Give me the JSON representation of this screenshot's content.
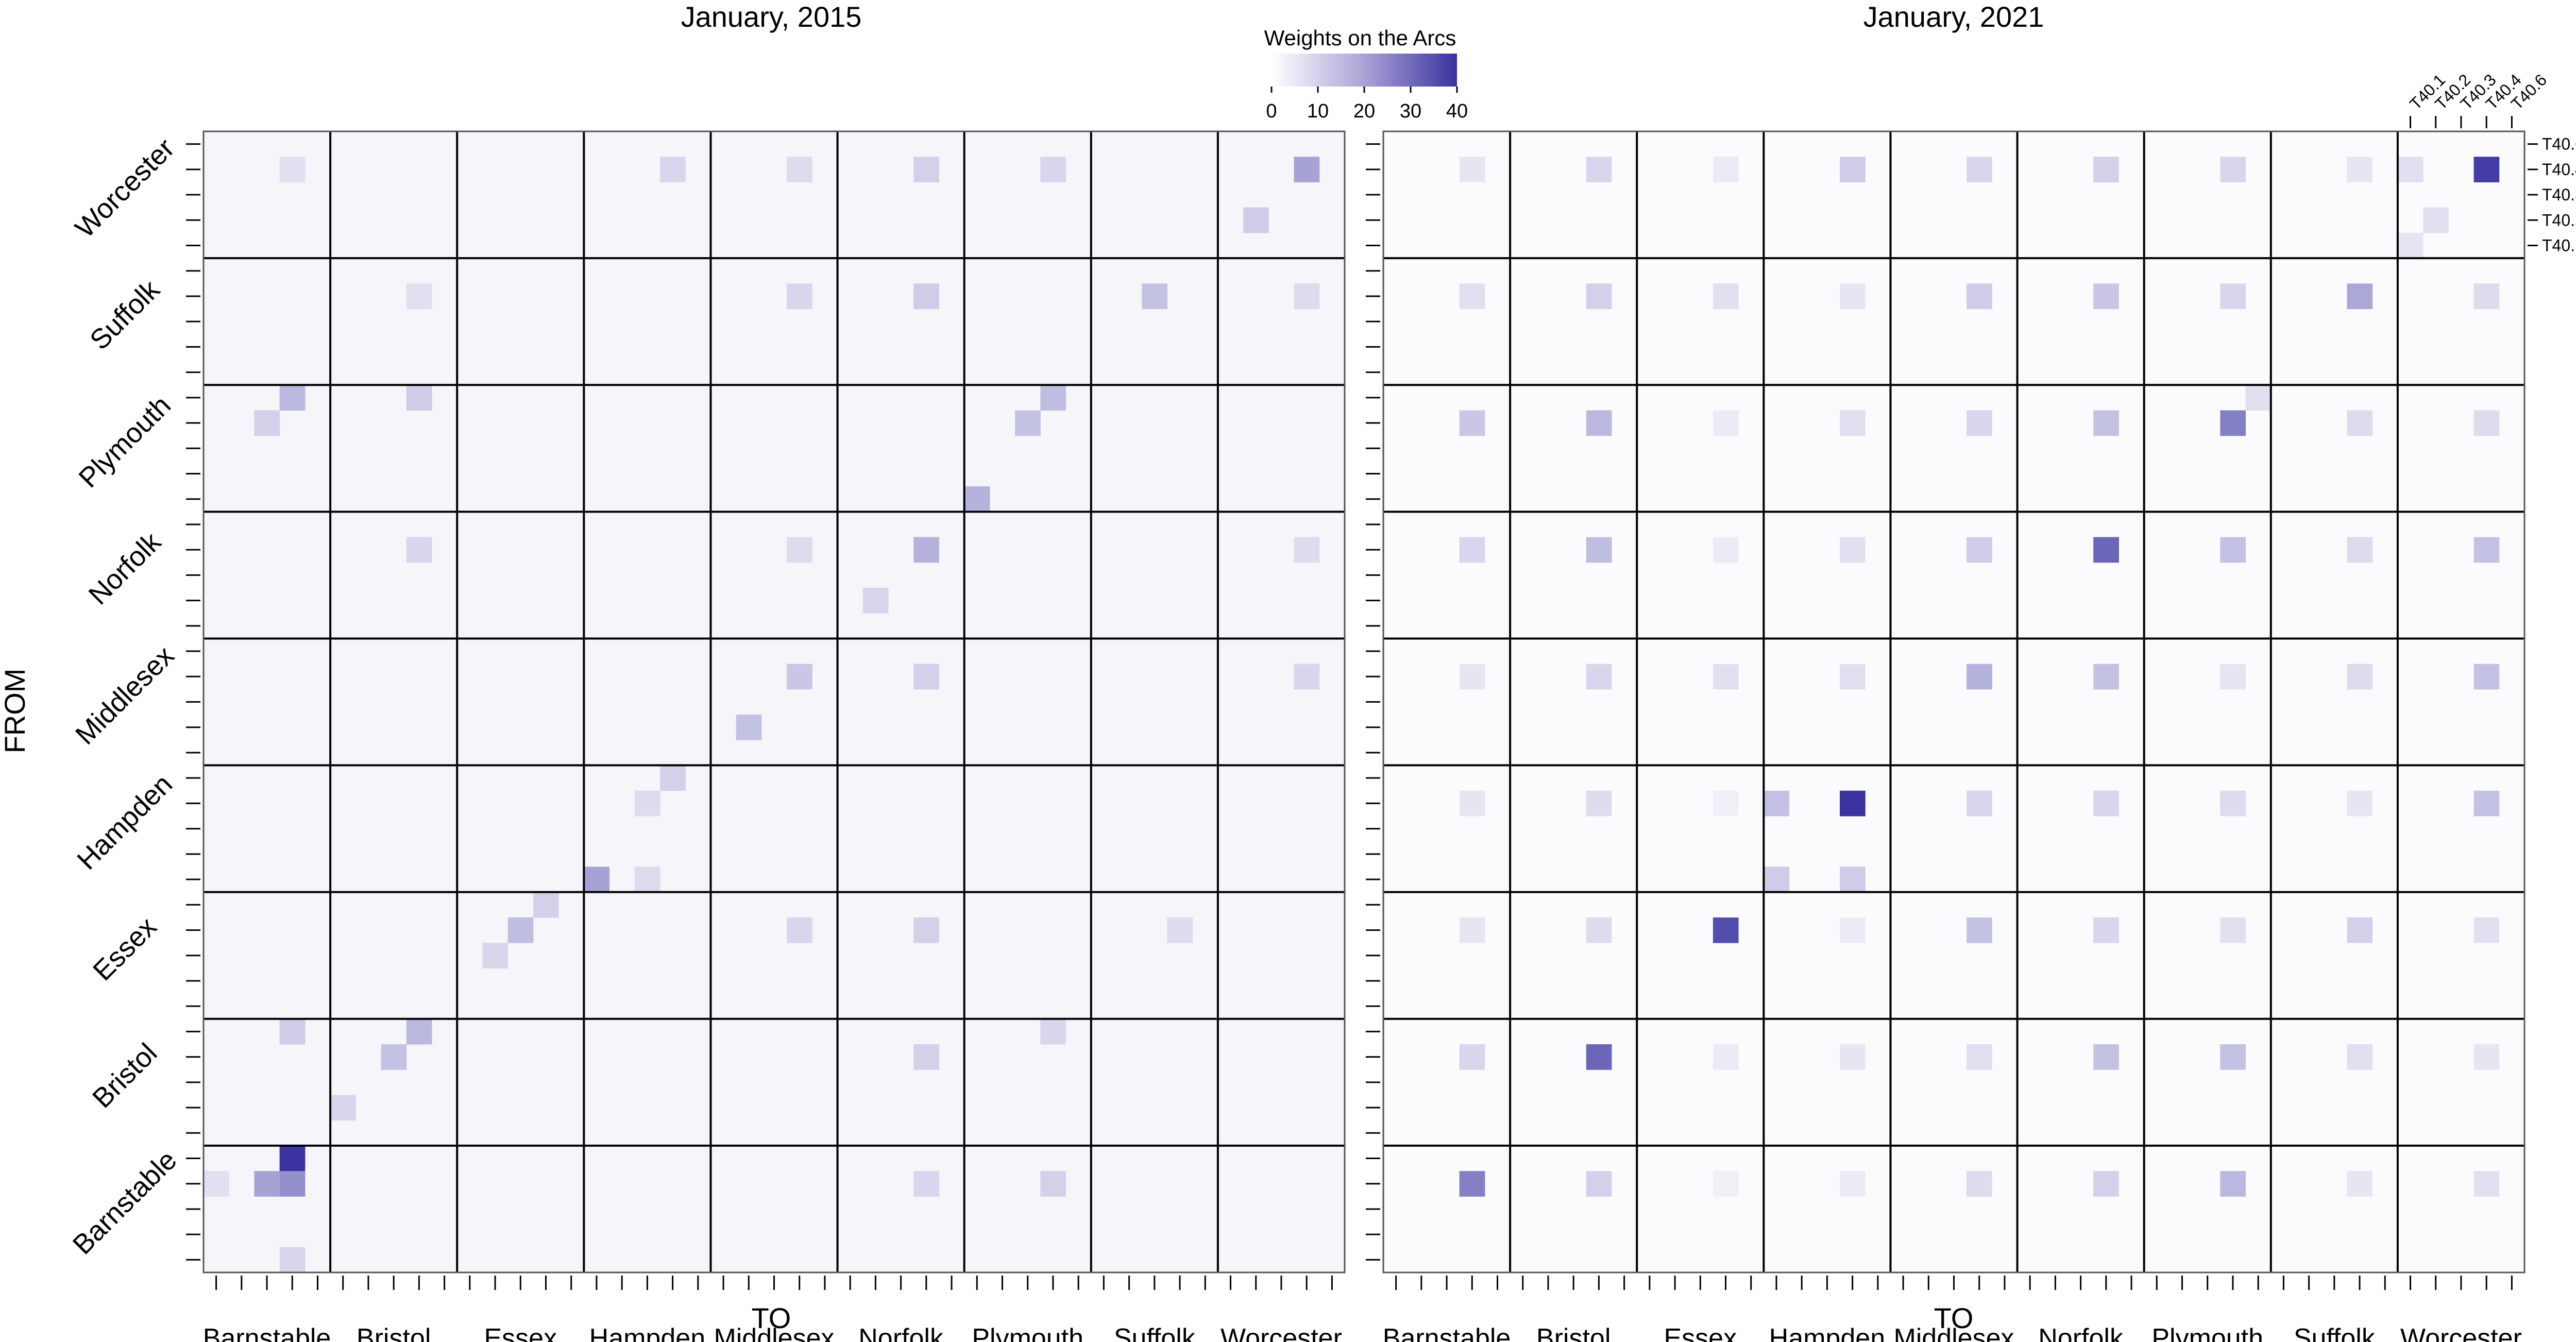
{
  "figure": {
    "left_title": "January, 2015",
    "right_title": "January, 2021",
    "x_axis_title": "TO",
    "y_axis_title": "FROM"
  },
  "legend": {
    "title": "Weights on the Arcs",
    "ticks": [
      "0",
      "10",
      "20",
      "30",
      "40"
    ],
    "range": [
      0,
      40
    ],
    "color_low": "#ffffff",
    "color_high": "#3a33a0"
  },
  "chart_data": [
    {
      "type": "heatmap",
      "title": "January, 2015",
      "xlabel": "TO",
      "ylabel": "FROM",
      "blocks": [
        "Barnstable",
        "Bristol",
        "Essex",
        "Hampden",
        "Middlesex",
        "Norfolk",
        "Plymouth",
        "Suffolk",
        "Worcester"
      ],
      "sub_levels": [
        "T40.1",
        "T40.2",
        "T40.3",
        "T40.4",
        "T40.6"
      ],
      "scale": [
        0,
        40
      ],
      "background": 2,
      "rows_top_to_bottom": [
        "Worcester",
        "Suffolk",
        "Plymouth",
        "Norfolk",
        "Middlesex",
        "Hampden",
        "Essex",
        "Bristol",
        "Barnstable"
      ],
      "cells": [
        {
          "from": "Worcester",
          "from_sub": "T40.4",
          "to": "Worcester",
          "to_sub": "T40.4",
          "value": 18
        },
        {
          "from": "Worcester",
          "from_sub": "T40.2",
          "to": "Worcester",
          "to_sub": "T40.2",
          "value": 10
        },
        {
          "from": "Worcester",
          "from_sub": "T40.4",
          "to": "Plymouth",
          "to_sub": "T40.4",
          "value": 8
        },
        {
          "from": "Worcester",
          "from_sub": "T40.4",
          "to": "Norfolk",
          "to_sub": "T40.4",
          "value": 9
        },
        {
          "from": "Worcester",
          "from_sub": "T40.4",
          "to": "Hampden",
          "to_sub": "T40.4",
          "value": 8
        },
        {
          "from": "Worcester",
          "from_sub": "T40.4",
          "to": "Barnstable",
          "to_sub": "T40.4",
          "value": 6
        },
        {
          "from": "Worcester",
          "from_sub": "T40.4",
          "to": "Middlesex",
          "to_sub": "T40.4",
          "value": 7
        },
        {
          "from": "Suffolk",
          "from_sub": "T40.4",
          "to": "Suffolk",
          "to_sub": "T40.3",
          "value": 12
        },
        {
          "from": "Suffolk",
          "from_sub": "T40.4",
          "to": "Norfolk",
          "to_sub": "T40.4",
          "value": 10
        },
        {
          "from": "Suffolk",
          "from_sub": "T40.4",
          "to": "Middlesex",
          "to_sub": "T40.4",
          "value": 8
        },
        {
          "from": "Suffolk",
          "from_sub": "T40.4",
          "to": "Worcester",
          "to_sub": "T40.4",
          "value": 7
        },
        {
          "from": "Suffolk",
          "from_sub": "T40.4",
          "to": "Bristol",
          "to_sub": "T40.4",
          "value": 6
        },
        {
          "from": "Plymouth",
          "from_sub": "T40.6",
          "to": "Barnstable",
          "to_sub": "T40.4",
          "value": 14
        },
        {
          "from": "Plymouth",
          "from_sub": "T40.6",
          "to": "Bristol",
          "to_sub": "T40.4",
          "value": 10
        },
        {
          "from": "Plymouth",
          "from_sub": "T40.6",
          "to": "Plymouth",
          "to_sub": "T40.4",
          "value": 13
        },
        {
          "from": "Plymouth",
          "from_sub": "T40.4",
          "to": "Plymouth",
          "to_sub": "T40.3",
          "value": 12
        },
        {
          "from": "Plymouth",
          "from_sub": "T40.1",
          "to": "Plymouth",
          "to_sub": "T40.1",
          "value": 15
        },
        {
          "from": "Plymouth",
          "from_sub": "T40.4",
          "to": "Barnstable",
          "to_sub": "T40.3",
          "value": 9
        },
        {
          "from": "Norfolk",
          "from_sub": "T40.4",
          "to": "Norfolk",
          "to_sub": "T40.4",
          "value": 15
        },
        {
          "from": "Norfolk",
          "from_sub": "T40.2",
          "to": "Norfolk",
          "to_sub": "T40.2",
          "value": 8
        },
        {
          "from": "Norfolk",
          "from_sub": "T40.4",
          "to": "Bristol",
          "to_sub": "T40.4",
          "value": 8
        },
        {
          "from": "Norfolk",
          "from_sub": "T40.4",
          "to": "Middlesex",
          "to_sub": "T40.4",
          "value": 7
        },
        {
          "from": "Norfolk",
          "from_sub": "T40.4",
          "to": "Worcester",
          "to_sub": "T40.4",
          "value": 7
        },
        {
          "from": "Middlesex",
          "from_sub": "T40.4",
          "to": "Middlesex",
          "to_sub": "T40.4",
          "value": 11
        },
        {
          "from": "Middlesex",
          "from_sub": "T40.2",
          "to": "Middlesex",
          "to_sub": "T40.2",
          "value": 12
        },
        {
          "from": "Middlesex",
          "from_sub": "T40.4",
          "to": "Norfolk",
          "to_sub": "T40.4",
          "value": 9
        },
        {
          "from": "Middlesex",
          "from_sub": "T40.4",
          "to": "Worcester",
          "to_sub": "T40.4",
          "value": 8
        },
        {
          "from": "Hampden",
          "from_sub": "T40.6",
          "to": "Hampden",
          "to_sub": "T40.4",
          "value": 9
        },
        {
          "from": "Hampden",
          "from_sub": "T40.4",
          "to": "Hampden",
          "to_sub": "T40.3",
          "value": 7
        },
        {
          "from": "Hampden",
          "from_sub": "T40.1",
          "to": "Hampden",
          "to_sub": "T40.1",
          "value": 18
        },
        {
          "from": "Hampden",
          "from_sub": "T40.1",
          "to": "Hampden",
          "to_sub": "T40.3",
          "value": 7
        },
        {
          "from": "Essex",
          "from_sub": "T40.6",
          "to": "Essex",
          "to_sub": "T40.4",
          "value": 9
        },
        {
          "from": "Essex",
          "from_sub": "T40.4",
          "to": "Essex",
          "to_sub": "T40.3",
          "value": 13
        },
        {
          "from": "Essex",
          "from_sub": "T40.3",
          "to": "Essex",
          "to_sub": "T40.2",
          "value": 8
        },
        {
          "from": "Essex",
          "from_sub": "T40.4",
          "to": "Middlesex",
          "to_sub": "T40.4",
          "value": 8
        },
        {
          "from": "Essex",
          "from_sub": "T40.4",
          "to": "Norfolk",
          "to_sub": "T40.4",
          "value": 9
        },
        {
          "from": "Essex",
          "from_sub": "T40.4",
          "to": "Suffolk",
          "to_sub": "T40.4",
          "value": 7
        },
        {
          "from": "Bristol",
          "from_sub": "T40.6",
          "to": "Bristol",
          "to_sub": "T40.4",
          "value": 14
        },
        {
          "from": "Bristol",
          "from_sub": "T40.4",
          "to": "Bristol",
          "to_sub": "T40.3",
          "value": 12
        },
        {
          "from": "Bristol",
          "from_sub": "T40.6",
          "to": "Barnstable",
          "to_sub": "T40.4",
          "value": 10
        },
        {
          "from": "Bristol",
          "from_sub": "T40.4",
          "to": "Norfolk",
          "to_sub": "T40.4",
          "value": 9
        },
        {
          "from": "Bristol",
          "from_sub": "T40.6",
          "to": "Plymouth",
          "to_sub": "T40.4",
          "value": 8
        },
        {
          "from": "Bristol",
          "from_sub": "T40.2",
          "to": "Bristol",
          "to_sub": "T40.1",
          "value": 8
        },
        {
          "from": "Barnstable",
          "from_sub": "T40.6",
          "to": "Barnstable",
          "to_sub": "T40.4",
          "value": 40
        },
        {
          "from": "Barnstable",
          "from_sub": "T40.4",
          "to": "Barnstable",
          "to_sub": "T40.4",
          "value": 22
        },
        {
          "from": "Barnstable",
          "from_sub": "T40.4",
          "to": "Barnstable",
          "to_sub": "T40.3",
          "value": 18
        },
        {
          "from": "Barnstable",
          "from_sub": "T40.4",
          "to": "Barnstable",
          "to_sub": "T40.1",
          "value": 6
        },
        {
          "from": "Barnstable",
          "from_sub": "T40.4",
          "to": "Plymouth",
          "to_sub": "T40.4",
          "value": 9
        },
        {
          "from": "Barnstable",
          "from_sub": "T40.4",
          "to": "Norfolk",
          "to_sub": "T40.4",
          "value": 8
        },
        {
          "from": "Barnstable",
          "from_sub": "T40.1",
          "to": "Barnstable",
          "to_sub": "T40.4",
          "value": 8
        }
      ]
    },
    {
      "type": "heatmap",
      "title": "January, 2021",
      "xlabel": "TO",
      "ylabel": "FROM",
      "blocks": [
        "Barnstable",
        "Bristol",
        "Essex",
        "Hampden",
        "Middlesex",
        "Norfolk",
        "Plymouth",
        "Suffolk",
        "Worcester"
      ],
      "sub_levels": [
        "T40.1",
        "T40.2",
        "T40.3",
        "T40.4",
        "T40.6"
      ],
      "scale": [
        0,
        40
      ],
      "background": 0.8,
      "default_to_sub": "T40.4",
      "default_from_sub": "T40.4",
      "block_values": {
        "Worcester": [
          5,
          8,
          4,
          10,
          8,
          9,
          8,
          5,
          38
        ],
        "Suffolk": [
          6,
          9,
          6,
          5,
          10,
          11,
          8,
          17,
          7
        ],
        "Plymouth": [
          11,
          14,
          4,
          6,
          8,
          12,
          25,
          7,
          7
        ],
        "Norfolk": [
          8,
          13,
          4,
          6,
          10,
          30,
          12,
          7,
          12
        ],
        "Middlesex": [
          5,
          8,
          6,
          6,
          15,
          12,
          5,
          7,
          12
        ],
        "Hampden": [
          5,
          7,
          3,
          40,
          8,
          8,
          7,
          5,
          12
        ],
        "Essex": [
          5,
          7,
          35,
          4,
          12,
          8,
          6,
          9,
          6
        ],
        "Bristol": [
          8,
          30,
          4,
          5,
          6,
          12,
          12,
          6,
          5
        ],
        "Barnstable": [
          25,
          9,
          3,
          4,
          7,
          9,
          14,
          5,
          6
        ]
      },
      "extra_cells": [
        {
          "from": "Hampden",
          "from_sub": "T40.4",
          "to": "Hampden",
          "to_sub": "T40.1",
          "value": 12
        },
        {
          "from": "Hampden",
          "from_sub": "T40.1",
          "to": "Hampden",
          "to_sub": "T40.1",
          "value": 10
        },
        {
          "from": "Hampden",
          "from_sub": "T40.1",
          "to": "Hampden",
          "to_sub": "T40.4",
          "value": 10
        },
        {
          "from": "Plymouth",
          "from_sub": "T40.6",
          "to": "Plymouth",
          "to_sub": "T40.6",
          "value": 6
        },
        {
          "from": "Worcester",
          "from_sub": "T40.2",
          "to": "Worcester",
          "to_sub": "T40.2",
          "value": 6
        },
        {
          "from": "Worcester",
          "from_sub": "T40.1",
          "to": "Worcester",
          "to_sub": "T40.1",
          "value": 5
        },
        {
          "from": "Worcester",
          "from_sub": "T40.4",
          "to": "Worcester",
          "to_sub": "T40.1",
          "value": 6
        }
      ]
    }
  ]
}
